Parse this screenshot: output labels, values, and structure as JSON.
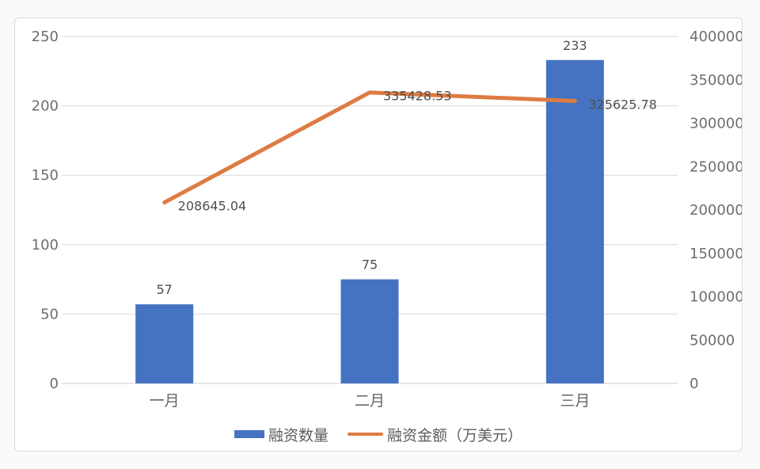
{
  "colors": {
    "bar": "#4573C1",
    "line": "#DE7B42",
    "grid": "#d9d9d9",
    "axis_line": "#cfcfcf",
    "tick_text": "#6e6e6e",
    "data_label_text": "#4f4f4f",
    "category_text": "#666666",
    "card_border": "#dadada",
    "card_bg": "#ffffff",
    "page_bg": "#fafafa"
  },
  "chart_data": {
    "type": "bar",
    "subtype": "combo-bar-line-dual-axis",
    "categories": [
      "一月",
      "二月",
      "三月"
    ],
    "series": [
      {
        "name": "融资数量",
        "type": "bar",
        "axis": "left",
        "color": "#4573C1",
        "values": [
          57,
          75,
          233
        ],
        "labels": [
          "57",
          "75",
          "233"
        ]
      },
      {
        "name": "融资金额（万美元）",
        "type": "line",
        "axis": "right",
        "color": "#DE7B42",
        "values": [
          208645.04,
          335428.53,
          325625.78
        ],
        "labels": [
          "208645.04",
          "335428.53",
          "325625.78"
        ]
      }
    ],
    "left_axis": {
      "min": 0,
      "max": 250,
      "step": 50,
      "ticks": [
        "250",
        "200",
        "150",
        "100",
        "50",
        "0"
      ]
    },
    "right_axis": {
      "min": 0,
      "max": 400000,
      "step": 50000,
      "ticks": [
        "400000",
        "350000",
        "300000",
        "250000",
        "200000",
        "150000",
        "100000",
        "50000",
        "0"
      ]
    },
    "title": "",
    "xlabel": "",
    "ylabel": "",
    "grid": true,
    "legend_position": "bottom"
  },
  "legend": {
    "items": [
      {
        "label": "融资数量",
        "swatch": "bar"
      },
      {
        "label": "融资金额（万美元）",
        "swatch": "line"
      }
    ]
  }
}
